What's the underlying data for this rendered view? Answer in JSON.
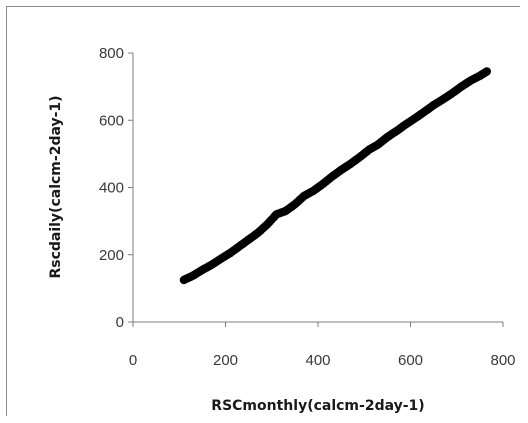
{
  "chart_data": {
    "type": "scatter",
    "title": "",
    "xlabel": "RSCmonthly(calcm-2day-1)",
    "ylabel": "Rscdaily(calcm-2day-1)",
    "xlim": [
      0,
      800
    ],
    "ylim": [
      0,
      800
    ],
    "x_ticks": [
      "0",
      "200",
      "400",
      "600",
      "800"
    ],
    "y_ticks": [
      "0",
      "200",
      "400",
      "600",
      "800"
    ],
    "grid": false,
    "legend": "none",
    "marker_color": "#000000",
    "series": [
      {
        "values": [
          [
            110,
            125
          ],
          [
            130,
            138
          ],
          [
            150,
            155
          ],
          [
            170,
            170
          ],
          [
            190,
            188
          ],
          [
            210,
            205
          ],
          [
            230,
            225
          ],
          [
            250,
            245
          ],
          [
            270,
            265
          ],
          [
            290,
            290
          ],
          [
            310,
            320
          ],
          [
            330,
            330
          ],
          [
            350,
            350
          ],
          [
            370,
            375
          ],
          [
            390,
            390
          ],
          [
            410,
            410
          ],
          [
            430,
            432
          ],
          [
            450,
            452
          ],
          [
            470,
            470
          ],
          [
            490,
            490
          ],
          [
            510,
            512
          ],
          [
            530,
            528
          ],
          [
            550,
            550
          ],
          [
            570,
            568
          ],
          [
            590,
            588
          ],
          [
            610,
            606
          ],
          [
            630,
            625
          ],
          [
            650,
            645
          ],
          [
            670,
            662
          ],
          [
            690,
            680
          ],
          [
            710,
            700
          ],
          [
            730,
            718
          ],
          [
            750,
            732
          ],
          [
            765,
            745
          ]
        ]
      }
    ]
  }
}
